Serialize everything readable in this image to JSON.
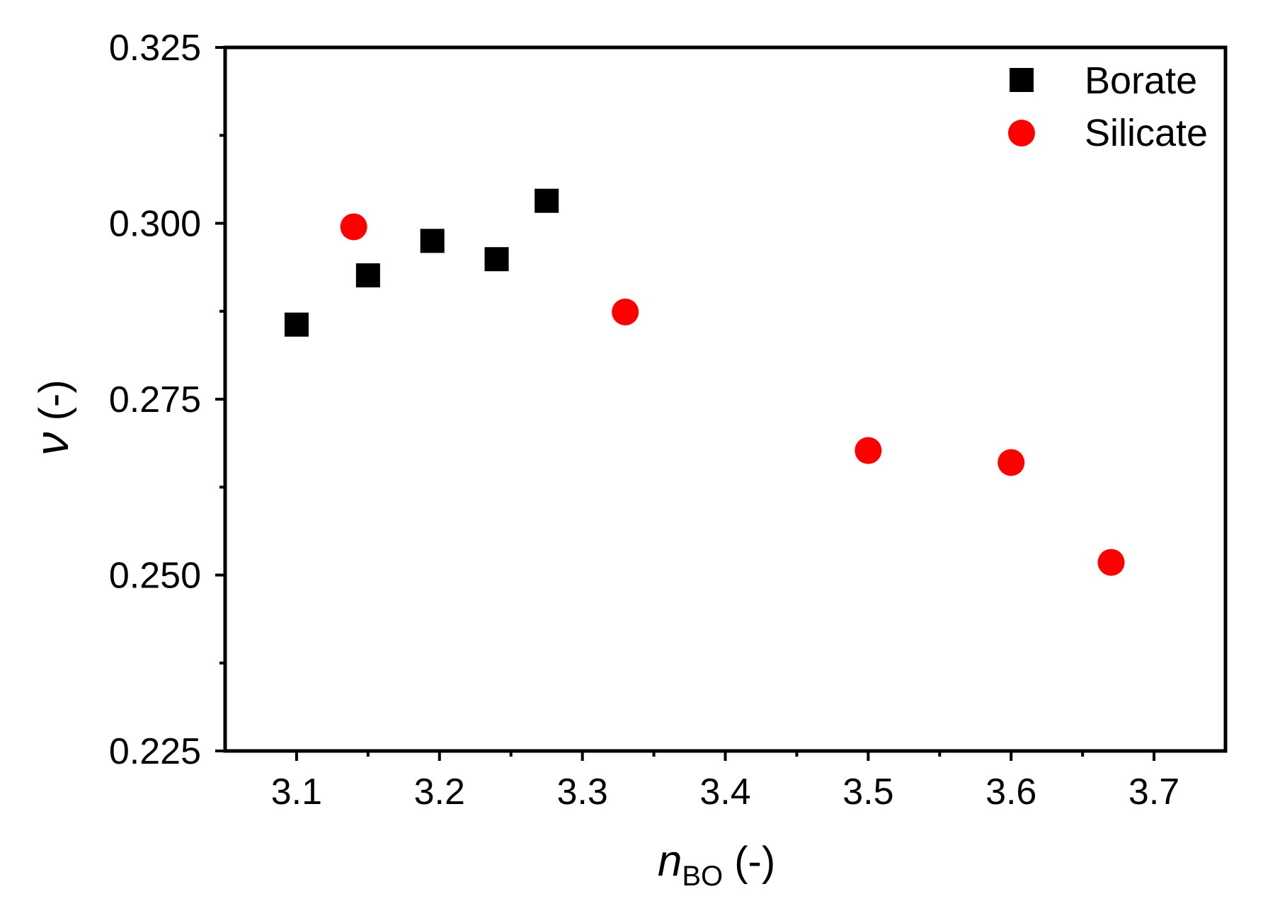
{
  "chart_data": {
    "type": "scatter",
    "title": "",
    "xlabel": {
      "main": "n",
      "subscript": "BO",
      "suffix": " (-)"
    },
    "ylabel": {
      "main": "ν",
      "suffix": " (-)"
    },
    "xlim": [
      3.05,
      3.75
    ],
    "ylim": [
      0.225,
      0.325
    ],
    "x_major_ticks": [
      3.1,
      3.2,
      3.3,
      3.4,
      3.5,
      3.6,
      3.7
    ],
    "x_tick_labels": [
      "3.1",
      "3.2",
      "3.3",
      "3.4",
      "3.5",
      "3.6",
      "3.7"
    ],
    "x_minor_ticks": [
      3.15,
      3.25,
      3.35,
      3.45,
      3.55,
      3.65
    ],
    "y_major_ticks": [
      0.225,
      0.25,
      0.275,
      0.3,
      0.325
    ],
    "y_tick_labels": [
      "0.225",
      "0.250",
      "0.275",
      "0.300",
      "0.325"
    ],
    "y_minor_ticks": [
      0.2375,
      0.2625,
      0.2875,
      0.3125
    ],
    "grid": false,
    "legend_position": "top-right",
    "series": [
      {
        "name": "Borate",
        "marker": "square",
        "color": "#000000",
        "points": [
          {
            "x": 3.1,
            "y": 0.2856
          },
          {
            "x": 3.15,
            "y": 0.2926
          },
          {
            "x": 3.195,
            "y": 0.2975
          },
          {
            "x": 3.24,
            "y": 0.2949
          },
          {
            "x": 3.275,
            "y": 0.3032
          }
        ]
      },
      {
        "name": "Silicate",
        "marker": "circle",
        "color": "#ff0000",
        "points": [
          {
            "x": 3.14,
            "y": 0.2995
          },
          {
            "x": 3.33,
            "y": 0.2874
          },
          {
            "x": 3.5,
            "y": 0.2677
          },
          {
            "x": 3.6,
            "y": 0.266
          },
          {
            "x": 3.67,
            "y": 0.2518
          }
        ]
      }
    ]
  }
}
